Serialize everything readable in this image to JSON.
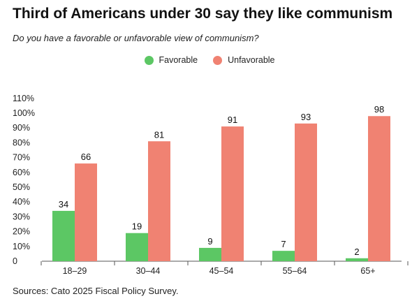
{
  "header": {
    "title": "Third of Americans under 30 say they like communism",
    "subtitle": "Do you have a favorable or unfavorable view of communism?"
  },
  "legend": [
    {
      "label": "Favorable",
      "color": "#5cc764"
    },
    {
      "label": "Unfavorable",
      "color": "#f08272"
    }
  ],
  "chart_data": {
    "type": "bar",
    "categories": [
      "18–29",
      "30–44",
      "45–54",
      "55–64",
      "65+"
    ],
    "series": [
      {
        "name": "Favorable",
        "values": [
          34,
          19,
          9,
          7,
          2
        ],
        "color": "#5cc764"
      },
      {
        "name": "Unfavorable",
        "values": [
          66,
          81,
          91,
          93,
          98
        ],
        "color": "#f08272"
      }
    ],
    "title": "Third of Americans under 30 say they like communism",
    "subtitle": "Do you have a favorable or unfavorable view of communism?",
    "xlabel": "",
    "ylabel": "",
    "ylim": [
      0,
      110
    ],
    "yticks": [
      0,
      10,
      20,
      30,
      40,
      50,
      60,
      70,
      80,
      90,
      100,
      110
    ],
    "ytick_labels": [
      "0",
      "10%",
      "20%",
      "30%",
      "40%",
      "50%",
      "60%",
      "70%",
      "80%",
      "90%",
      "100%",
      "110%"
    ],
    "grid": false,
    "legend_position": "top-center"
  },
  "footer": {
    "source": "Sources: Cato 2025 Fiscal Policy Survey."
  }
}
